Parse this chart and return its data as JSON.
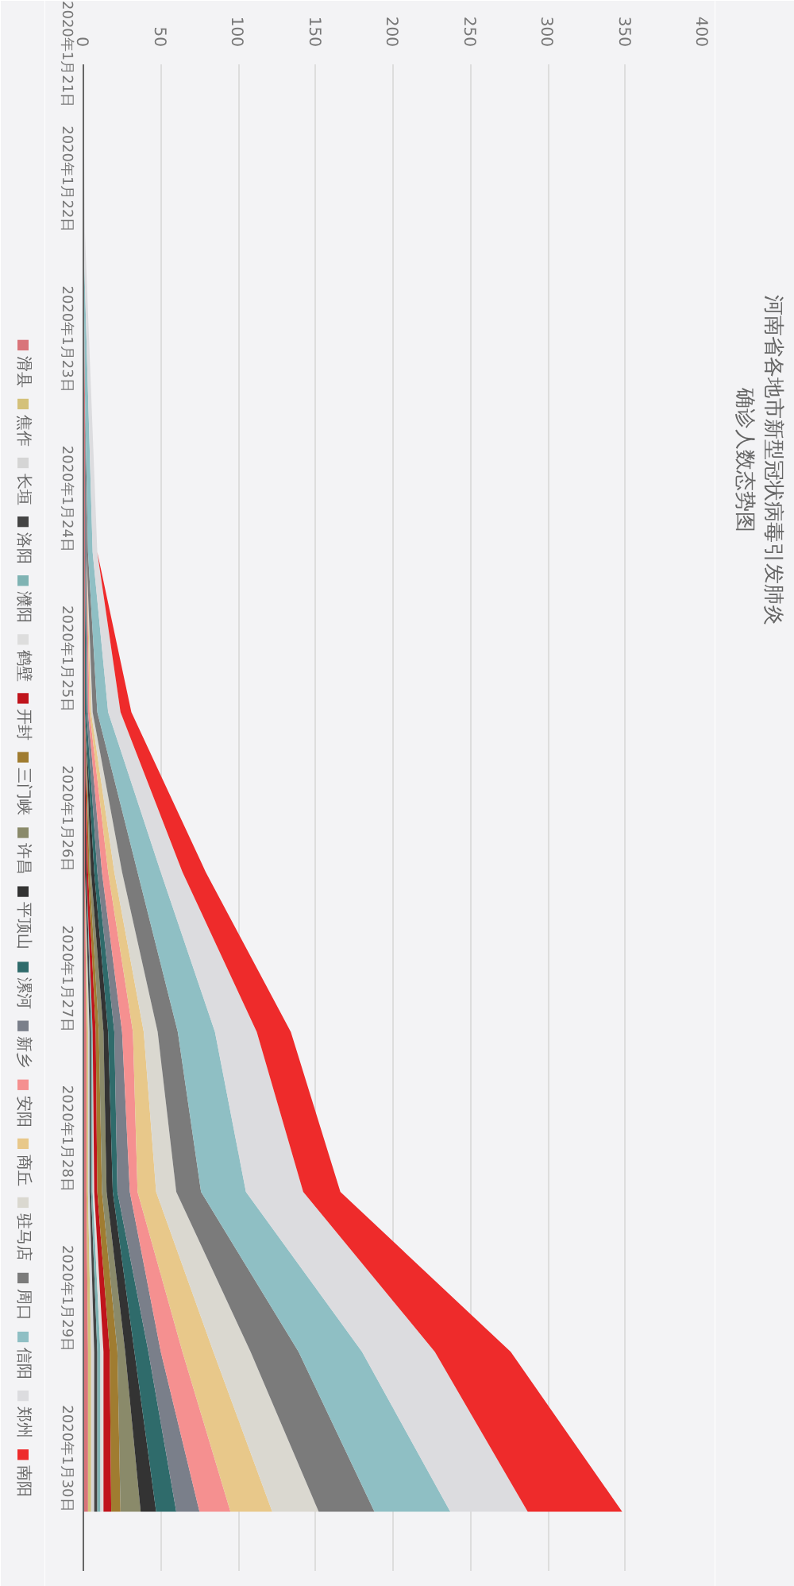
{
  "chart_data": {
    "type": "area",
    "title": "河南省各地市新型冠状病毒引发肺炎",
    "subtitle": "确诊人数态势图",
    "orientation": "horizontal",
    "stacked": true,
    "grid": "x",
    "legend": "left",
    "categories": [
      "2020年1月21日",
      "2020年1月22日",
      "2020年1月23日",
      "2020年1月24日",
      "2020年1月25日",
      "2020年1月26日",
      "2020年1月27日",
      "2020年1月28日",
      "2020年1月29日",
      "2020年1月30日"
    ],
    "xlim": [
      0,
      400
    ],
    "xticks": [
      0,
      50,
      100,
      150,
      200,
      250,
      300,
      350,
      400
    ],
    "series": [
      {
        "name": "滑县",
        "color": "#d9747a",
        "values": [
          0,
          0,
          1,
          1,
          1,
          1,
          2,
          2,
          3,
          3
        ]
      },
      {
        "name": "焦作",
        "color": "#d4c17a",
        "values": [
          0,
          0,
          0,
          0,
          0,
          0,
          1,
          1,
          2,
          2
        ]
      },
      {
        "name": "长垣",
        "color": "#d5d5d5",
        "values": [
          0,
          0,
          0,
          0,
          0,
          0,
          1,
          1,
          2,
          2
        ]
      },
      {
        "name": "洛阳",
        "color": "#444444",
        "values": [
          0,
          0,
          0,
          0,
          0,
          1,
          1,
          1,
          2,
          2
        ]
      },
      {
        "name": "濮阳",
        "color": "#7fb3b3",
        "values": [
          0,
          0,
          0,
          0,
          0,
          0,
          1,
          1,
          2,
          2
        ]
      },
      {
        "name": "鹤壁",
        "color": "#dddddd",
        "values": [
          0,
          0,
          0,
          0,
          0,
          0,
          0,
          1,
          2,
          2
        ]
      },
      {
        "name": "开封",
        "color": "#c0141c",
        "values": [
          0,
          0,
          0,
          0,
          0,
          1,
          2,
          2,
          4,
          5
        ]
      },
      {
        "name": "三门峡",
        "color": "#a07c30",
        "values": [
          0,
          0,
          0,
          0,
          0,
          1,
          2,
          3,
          5,
          6
        ]
      },
      {
        "name": "许昌",
        "color": "#8a8a6a",
        "values": [
          0,
          0,
          0,
          0,
          0,
          1,
          3,
          3,
          5,
          13
        ]
      },
      {
        "name": "平顶山",
        "color": "#333333",
        "values": [
          0,
          0,
          0,
          0,
          0,
          2,
          3,
          4,
          6,
          10
        ]
      },
      {
        "name": "漯河",
        "color": "#2f6b6b",
        "values": [
          0,
          0,
          0,
          0,
          1,
          2,
          4,
          3,
          9,
          13
        ]
      },
      {
        "name": "新乡",
        "color": "#7a7f8a",
        "values": [
          0,
          0,
          0,
          1,
          1,
          3,
          5,
          8,
          8,
          15
        ]
      },
      {
        "name": "安阳",
        "color": "#f59090",
        "values": [
          0,
          0,
          0,
          0,
          1,
          4,
          7,
          5,
          14,
          20
        ]
      },
      {
        "name": "商丘",
        "color": "#e8c88a",
        "values": [
          0,
          0,
          0,
          0,
          1,
          4,
          7,
          12,
          20,
          27
        ]
      },
      {
        "name": "驻马店",
        "color": "#dad8d0",
        "values": [
          0,
          0,
          0,
          0,
          1,
          5,
          9,
          13,
          24,
          30
        ]
      },
      {
        "name": "周口",
        "color": "#7b7b7b",
        "values": [
          0,
          0,
          0,
          1,
          3,
          10,
          13,
          16,
          31,
          36
        ]
      },
      {
        "name": "信阳",
        "color": "#8fbfc4",
        "values": [
          0,
          0,
          2,
          3,
          7,
          15,
          24,
          29,
          41,
          49
        ]
      },
      {
        "name": "郑州",
        "color": "#dcdcdf",
        "values": [
          0,
          1,
          2,
          3,
          8,
          14,
          27,
          37,
          47,
          50
        ]
      },
      {
        "name": "南阳",
        "color": "#ee2b2b",
        "values": [
          0,
          0,
          0,
          0,
          7,
          15,
          22,
          24,
          49,
          61
        ]
      }
    ]
  }
}
